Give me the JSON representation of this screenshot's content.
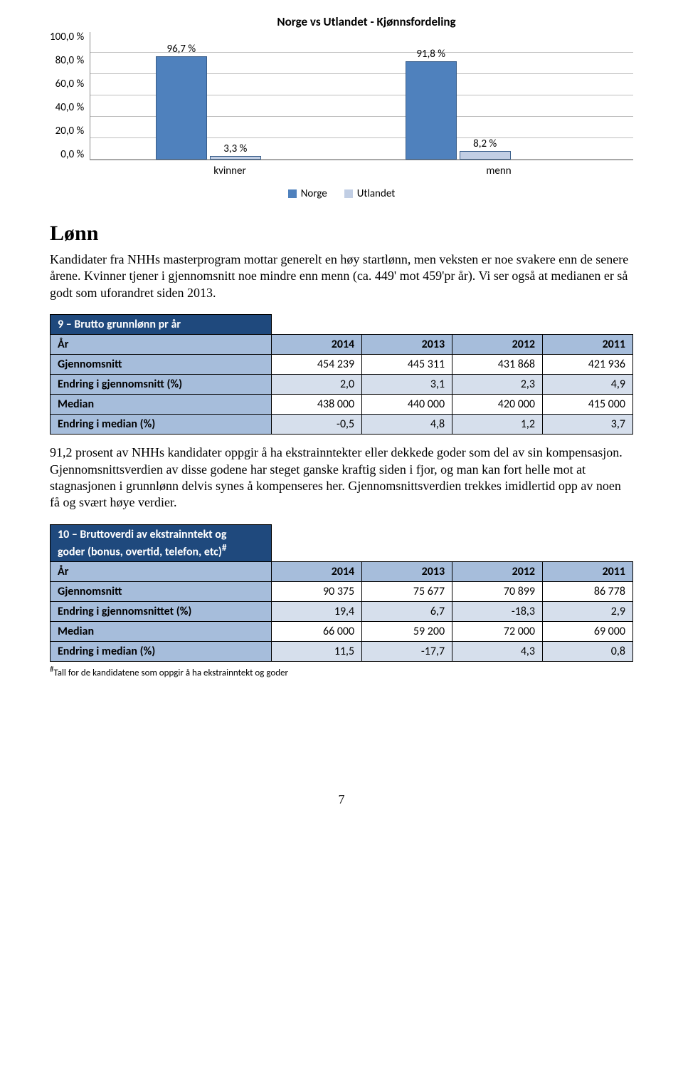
{
  "chart": {
    "title": "Norge vs Utlandet - Kjønnsfordeling",
    "y_ticks": [
      "100,0 %",
      "80,0 %",
      "60,0 %",
      "40,0 %",
      "20,0 %",
      "0,0 %"
    ],
    "categories": [
      "kvinner",
      "menn"
    ],
    "series": [
      {
        "name": "Norge",
        "color": "#4f81bd",
        "values": [
          96.7,
          91.8
        ],
        "labels": [
          "96,7 %",
          "91,8 %"
        ]
      },
      {
        "name": "Utlandet",
        "color": "#c1cee4",
        "values": [
          3.3,
          8.2
        ],
        "labels": [
          "3,3 %",
          "8,2 %"
        ]
      }
    ],
    "ylim_max": 120,
    "legend": [
      "Norge",
      "Utlandet"
    ]
  },
  "section_title": "Lønn",
  "para1": "Kandidater fra NHHs masterprogram mottar generelt en høy startlønn, men veksten er noe svakere enn de senere årene. Kvinner tjener i gjennomsnitt noe mindre enn menn (ca. 449' mot 459'pr år). Vi ser også at medianen er så godt som uforandret siden 2013.",
  "table1": {
    "title": "9 – Brutto grunnlønn pr år",
    "year_label": "År",
    "years": [
      "2014",
      "2013",
      "2012",
      "2011"
    ],
    "rows": [
      {
        "label": "Gjennomsnitt",
        "cells": [
          "454 239",
          "445 311",
          "431 868",
          "421 936"
        ]
      },
      {
        "label": "Endring i gjennomsnitt (%)",
        "cells": [
          "2,0",
          "3,1",
          "2,3",
          "4,9"
        ]
      },
      {
        "label": "Median",
        "cells": [
          "438 000",
          "440 000",
          "420 000",
          "415 000"
        ]
      },
      {
        "label": "Endring i median (%)",
        "cells": [
          "-0,5",
          "4,8",
          "1,2",
          "3,7"
        ]
      }
    ]
  },
  "para2": "91,2 prosent av NHHs kandidater oppgir å ha ekstrainntekter eller dekkede goder som del av sin kompensasjon. Gjennomsnittsverdien av disse godene har steget ganske kraftig siden i fjor, og man kan fort helle mot at stagnasjonen i grunnlønn delvis synes å kompenseres her. Gjennomsnittsverdien trekkes imidlertid opp av noen få og svært høye verdier.",
  "table2": {
    "title_line1": "10 – Bruttoverdi av ekstrainntekt og",
    "title_line2": "goder (bonus, overtid, telefon, etc)",
    "title_sup": "#",
    "year_label": "År",
    "years": [
      "2014",
      "2013",
      "2012",
      "2011"
    ],
    "rows": [
      {
        "label": "Gjennomsnitt",
        "cells": [
          "90 375",
          "75 677",
          "70 899",
          "86 778"
        ]
      },
      {
        "label": "Endring i gjennomsnittet (%)",
        "cells": [
          "19,4",
          "6,7",
          "-18,3",
          "2,9"
        ]
      },
      {
        "label": "Median",
        "cells": [
          "66 000",
          "59 200",
          "72 000",
          "69 000"
        ]
      },
      {
        "label": "Endring i median (%)",
        "cells": [
          "11,5",
          "-17,7",
          "4,3",
          "0,8"
        ]
      }
    ]
  },
  "footnote_sup": "#",
  "footnote": "Tall for de kandidatene som oppgir å ha ekstrainntekt og goder",
  "page_number": "7"
}
